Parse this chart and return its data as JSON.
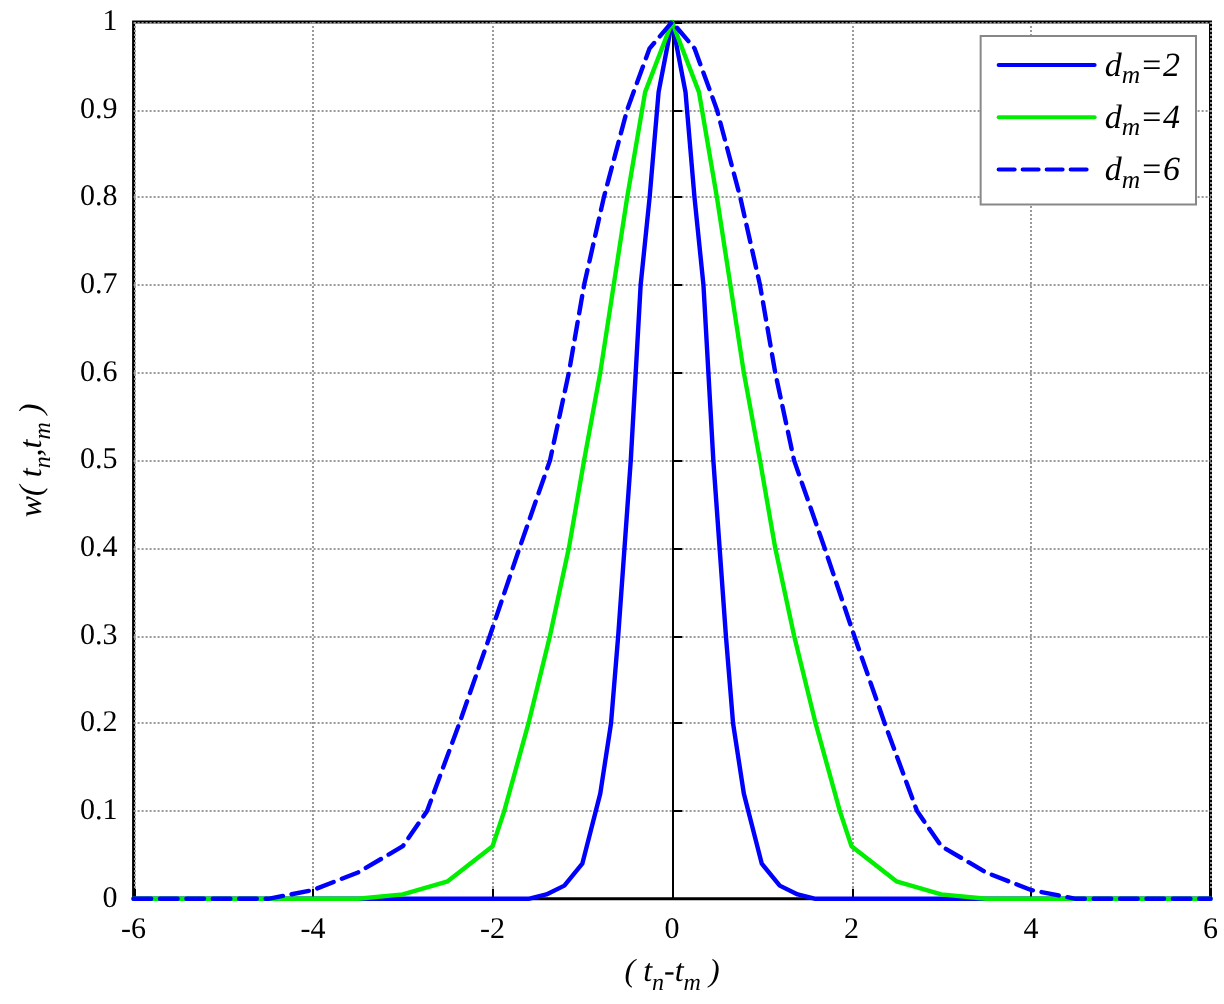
{
  "chart_data": {
    "type": "line",
    "xlabel": "( t$_{n}$-t$_{m}$ )",
    "ylabel": "w( t$_{n}$,t$_{m}$ )",
    "xlim": [
      -6,
      6
    ],
    "xticks": [
      -6,
      -4,
      -2,
      0,
      2,
      4,
      6
    ],
    "ylim": [
      0,
      1
    ],
    "yticks": [
      0,
      0.1,
      0.2,
      0.3,
      0.4,
      0.5,
      0.6,
      0.7,
      0.8,
      0.9,
      1
    ],
    "grid": true,
    "legend": "top right",
    "marker": "none",
    "series": [
      {
        "name": "d$_{m}$=2",
        "color": "#0000ff",
        "line_style": "solid",
        "x": [
          -6,
          -1.6,
          -1.4,
          -1.2,
          -1,
          -0.8,
          -0.68,
          -0.6,
          -0.46,
          -0.35,
          -0.25,
          -0.15,
          0,
          0.15,
          0.25,
          0.35,
          0.46,
          0.6,
          0.68,
          0.8,
          1,
          1.2,
          1.4,
          1.6,
          6
        ],
        "values": [
          0,
          0,
          0.005,
          0.015,
          0.04,
          0.12,
          0.2,
          0.3,
          0.5,
          0.7,
          0.8,
          0.92,
          1,
          0.92,
          0.8,
          0.7,
          0.5,
          0.3,
          0.2,
          0.12,
          0.04,
          0.015,
          0.005,
          0,
          0
        ]
      },
      {
        "name": "d$_{m}$=4",
        "color": "#00ee00",
        "line_style": "solid",
        "x": [
          -6,
          -3.5,
          -3,
          -2.5,
          -2,
          -1.87,
          -1.6,
          -1.36,
          -1.15,
          -0.98,
          -0.8,
          -0.65,
          -0.5,
          -0.3,
          0,
          0.3,
          0.5,
          0.65,
          0.8,
          0.98,
          1.15,
          1.36,
          1.6,
          1.87,
          2,
          2.5,
          3,
          3.5,
          6
        ],
        "values": [
          0,
          0,
          0.005,
          0.02,
          0.06,
          0.1,
          0.2,
          0.3,
          0.4,
          0.5,
          0.6,
          0.7,
          0.8,
          0.92,
          1,
          0.92,
          0.8,
          0.7,
          0.6,
          0.5,
          0.4,
          0.3,
          0.2,
          0.1,
          0.06,
          0.02,
          0.005,
          0,
          0
        ]
      },
      {
        "name": "d$_{m}$=6",
        "color": "#0000ff",
        "line_style": "dashed",
        "x": [
          -6,
          -4.5,
          -4,
          -3.5,
          -3,
          -2.73,
          -2.37,
          -2.03,
          -1.7,
          -1.36,
          -1.15,
          -0.98,
          -0.76,
          -0.5,
          -0.25,
          0,
          0.25,
          0.5,
          0.76,
          0.98,
          1.15,
          1.36,
          1.7,
          2.03,
          2.37,
          2.73,
          3,
          3.5,
          4,
          4.5,
          6
        ],
        "values": [
          0,
          0,
          0.01,
          0.03,
          0.06,
          0.1,
          0.2,
          0.3,
          0.4,
          0.5,
          0.6,
          0.7,
          0.8,
          0.9,
          0.97,
          1,
          0.97,
          0.9,
          0.8,
          0.7,
          0.6,
          0.5,
          0.4,
          0.3,
          0.2,
          0.1,
          0.06,
          0.03,
          0.01,
          0,
          0
        ]
      }
    ]
  }
}
